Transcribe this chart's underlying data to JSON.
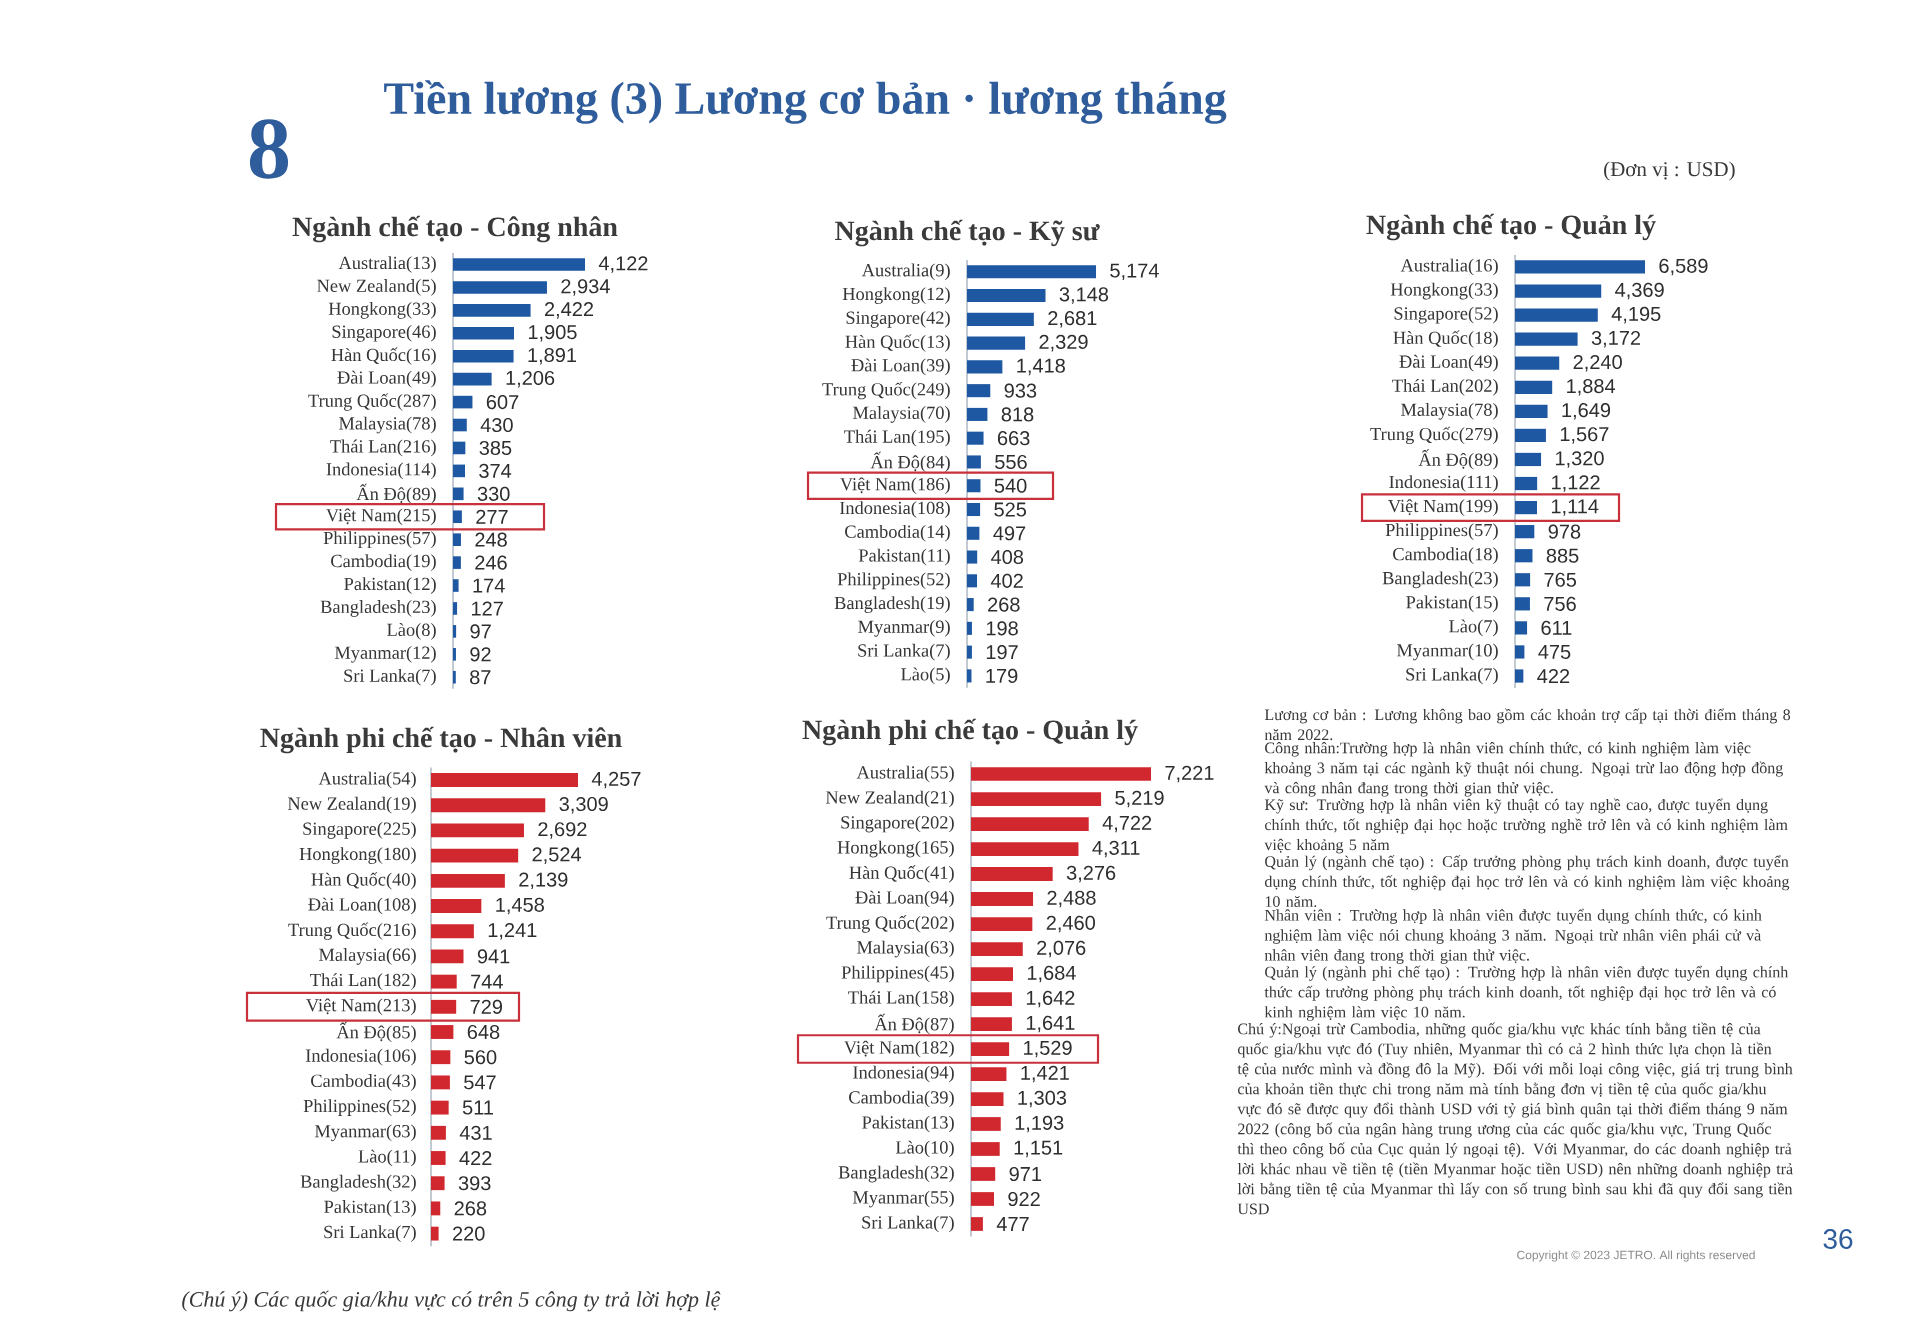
{
  "chart_data": [
    {
      "type": "other",
      "title": "Tiền lương (3) Lương cơ bản · lương tháng",
      "annotations": [
        "8",
        "(Đơn vị : USD)"
      ]
    },
    {
      "type": "bar",
      "orientation": "horizontal",
      "title": "Ngành chế tạo - Công nhân",
      "tick_labels": "y",
      "color": "#1f58a2",
      "categories": [
        "Australia(13)",
        "New Zealand(5)",
        "Hongkong(33)",
        "Singapore(46)",
        "Hàn Quốc(16)",
        "Đài Loan(49)",
        "Trung Quốc(287)",
        "Malaysia(78)",
        "Thái Lan(216)",
        "Indonesia(114)",
        "Ấn Độ(89)",
        "Việt Nam(215)",
        "Philippines(57)",
        "Cambodia(19)",
        "Pakistan(12)",
        "Bangladesh(23)",
        "Lào(8)",
        "Myanmar(12)",
        "Sri Lanka(7)"
      ],
      "values": [
        4122,
        2934,
        2422,
        1905,
        1891,
        1206,
        607,
        430,
        385,
        374,
        330,
        277,
        248,
        246,
        174,
        127,
        97,
        92,
        87
      ],
      "value_labels": [
        "4,122",
        "2,934",
        "2,422",
        "1,905",
        "1,891",
        "1,206",
        "607",
        "430",
        "385",
        "374",
        "330",
        "277",
        "248",
        "246",
        "174",
        "127",
        "97",
        "92",
        "87"
      ]
    },
    {
      "type": "bar",
      "orientation": "horizontal",
      "title": "Ngành chế tạo - Kỹ sư",
      "tick_labels": "y",
      "color": "#1f58a2",
      "categories": [
        "Australia(9)",
        "Hongkong(12)",
        "Singapore(42)",
        "Hàn Quốc(13)",
        "Đài Loan(39)",
        "Trung Quốc(249)",
        "Malaysia(70)",
        "Thái Lan(195)",
        "Ấn Độ(84)",
        "Việt Nam(186)",
        "Indonesia(108)",
        "Cambodia(14)",
        "Pakistan(11)",
        "Philippines(52)",
        "Bangladesh(19)",
        "Myanmar(9)",
        "Sri Lanka(7)",
        "Lào(5)"
      ],
      "values": [
        5174,
        3148,
        2681,
        2329,
        1418,
        933,
        818,
        663,
        556,
        540,
        525,
        497,
        408,
        402,
        268,
        198,
        197,
        179
      ],
      "value_labels": [
        "5,174",
        "3,148",
        "2,681",
        "2,329",
        "1,418",
        "933",
        "818",
        "663",
        "556",
        "540",
        "525",
        "497",
        "408",
        "402",
        "268",
        "198",
        "197",
        "179"
      ]
    },
    {
      "type": "bar",
      "orientation": "horizontal",
      "title": "Ngành chế tạo - Quản lý",
      "tick_labels": "y",
      "color": "#1f58a2",
      "categories": [
        "Australia(16)",
        "Hongkong(33)",
        "Singapore(52)",
        "Hàn Quốc(18)",
        "Đài Loan(49)",
        "Thái Lan(202)",
        "Malaysia(78)",
        "Trung Quốc(279)",
        "Ấn Độ(89)",
        "Indonesia(111)",
        "Việt Nam(199)",
        "Philippines(57)",
        "Cambodia(18)",
        "Bangladesh(23)",
        "Pakistan(15)",
        "Lào(7)",
        "Myanmar(10)",
        "Sri Lanka(7)"
      ],
      "values": [
        6589,
        4369,
        4195,
        3172,
        2240,
        1884,
        1649,
        1567,
        1320,
        1122,
        1114,
        978,
        885,
        765,
        756,
        611,
        475,
        422
      ],
      "value_labels": [
        "6,589",
        "4,369",
        "4,195",
        "3,172",
        "2,240",
        "1,884",
        "1,649",
        "1,567",
        "1,320",
        "1,122",
        "1,114",
        "978",
        "885",
        "765",
        "756",
        "611",
        "475",
        "422"
      ]
    },
    {
      "type": "bar",
      "orientation": "horizontal",
      "title": "Ngành phi chế tạo - Nhân viên",
      "tick_labels": "y",
      "color": "#d0282e",
      "categories": [
        "Australia(54)",
        "New Zealand(19)",
        "Singapore(225)",
        "Hongkong(180)",
        "Hàn Quốc(40)",
        "Đài Loan(108)",
        "Trung Quốc(216)",
        "Malaysia(66)",
        "Thái Lan(182)",
        "Việt Nam(213)",
        "Ấn Độ(85)",
        "Indonesia(106)",
        "Cambodia(43)",
        "Philippines(52)",
        "Myanmar(63)",
        "Lào(11)",
        "Bangladesh(32)",
        "Pakistan(13)",
        "Sri Lanka(7)"
      ],
      "values": [
        4257,
        3309,
        2692,
        2524,
        2139,
        1458,
        1241,
        941,
        744,
        729,
        648,
        560,
        547,
        511,
        431,
        422,
        393,
        268,
        220
      ],
      "value_labels": [
        "4,257",
        "3,309",
        "2,692",
        "2,524",
        "2,139",
        "1,458",
        "1,241",
        "941",
        "744",
        "729",
        "648",
        "560",
        "547",
        "511",
        "431",
        "422",
        "393",
        "268",
        "220"
      ]
    },
    {
      "type": "bar",
      "orientation": "horizontal",
      "title": "Ngành phi chế tạo - Quản lý",
      "tick_labels": "y",
      "color": "#d0282e",
      "categories": [
        "Australia(55)",
        "New Zealand(21)",
        "Singapore(202)",
        "Hongkong(165)",
        "Hàn Quốc(41)",
        "Đài Loan(94)",
        "Trung Quốc(202)",
        "Malaysia(63)",
        "Philippines(45)",
        "Thái Lan(158)",
        "Ấn Độ(87)",
        "Việt Nam(182)",
        "Indonesia(94)",
        "Cambodia(39)",
        "Pakistan(13)",
        "Lào(10)",
        "Bangladesh(32)",
        "Myanmar(55)",
        "Sri Lanka(7)"
      ],
      "values": [
        7221,
        5219,
        4722,
        4311,
        3276,
        2488,
        2460,
        2076,
        1684,
        1642,
        1641,
        1529,
        1421,
        1303,
        1193,
        1151,
        971,
        922,
        477
      ],
      "value_labels": [
        "7,221",
        "5,219",
        "4,722",
        "4,311",
        "3,276",
        "2,488",
        "2,460",
        "2,076",
        "1,684",
        "1,642",
        "1,641",
        "1,529",
        "1,421",
        "1,303",
        "1,193",
        "1,151",
        "971",
        "922",
        "477"
      ]
    },
    {
      "type": "other",
      "annotations": [
        "Lương cơ bản : Lương không bao gồm các khoản trợ cấp tại thời điểm tháng 8 năm 2022.",
        "Công nhân:Trường hợp là nhân viên chính thức, có kinh nghiệm làm việc khoảng 3 năm tại các ngành kỹ thuật nói chung. Ngoại trừ lao động hợp đồng và công nhân đang trong thời gian thử việc.",
        "Kỹ sư: Trường hợp là nhân viên kỹ thuật có tay nghề cao, được tuyển dụng chính thức, tốt nghiệp đại học hoặc trường nghề trở lên và có kinh nghiệm làm việc khoảng 5 năm",
        "Quản lý (ngành chế tạo) : Cấp trưởng phòng phụ trách kinh doanh, được tuyển dụng chính thức, tốt nghiệp đại học trở lên và có kinh nghiệm làm việc khoảng 10 năm.",
        "Nhân viên : Trường hợp là nhân viên được tuyển dụng chính thức, có kinh nghiệm làm việc nói chung khoảng 3 năm. Ngoại trừ nhân viên phái cử và nhân viên đang trong thời gian thử việc.",
        "Quản lý (ngành phi chế tạo) : Trường hợp là nhân viên được tuyển dụng chính thức cấp trưởng phòng phụ trách kinh doanh, tốt nghiệp đại học trở lên và có kinh nghiệm làm việc 10 năm.",
        "Chú ý:Ngoại trừ Cambodia, những quốc gia/khu vực khác tính bằng tiền tệ của quốc gia/khu vực đó (Tuy nhiên, Myanmar thì có cả 2 hình thức lựa chọn là tiền tệ của nước mình và đồng đô la Mỹ). Đối với mỗi loại công việc, giá trị trung bình của khoản tiền thực chi trong năm mà tính bằng đơn vị tiền tệ của quốc gia/khu vực đó sẽ được quy đổi thành USD với tỷ giá bình quân tại thời điểm tháng 9 năm 2022 (công bố của ngân hàng trung ương của các quốc gia/khu vực, Trung Quốc thì theo công bố của Cục quản lý ngoại tệ). Với Myanmar, do các doanh nghiệp trả lời khác nhau về tiền tệ (tiền Myanmar hoặc tiền USD) nên những doanh nghiệp trả lời bằng tiền tệ của Myanmar thì lấy con số trung bình sau khi đã quy đổi sang tiền USD",
        "(Chú ý) Các quốc gia/khu vực có trên 5 công ty trả lời hợp lệ",
        "Copyright © 2023 JETRO. All rights reserved",
        "36"
      ]
    }
  ]
}
